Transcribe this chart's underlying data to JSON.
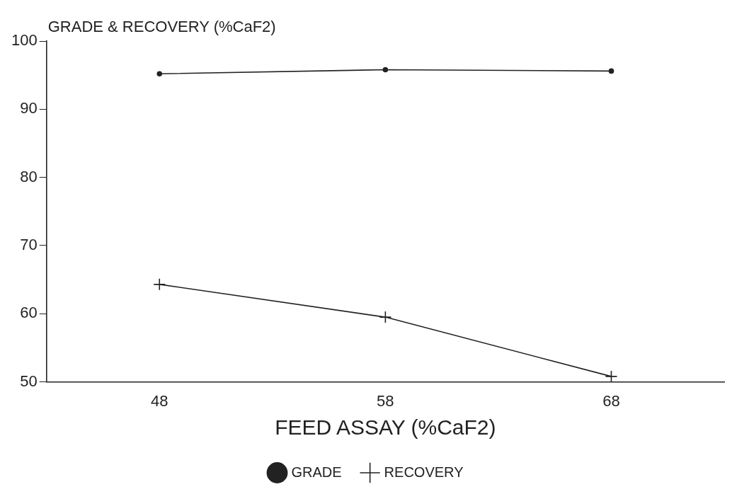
{
  "chart_data": {
    "type": "line",
    "ylabel": "GRADE & RECOVERY (%CaF2)",
    "xlabel": "FEED ASSAY (%CaF2)",
    "x": [
      48,
      58,
      68
    ],
    "series": [
      {
        "name": "GRADE",
        "color": "#222222",
        "marker": "circle",
        "values": [
          95.2,
          95.8,
          95.6
        ]
      },
      {
        "name": "RECOVERY",
        "color": "#222222",
        "marker": "cross",
        "values": [
          64.3,
          59.5,
          50.8
        ]
      }
    ],
    "xlim": [
      43,
      73
    ],
    "xticks": [
      48,
      58,
      68
    ],
    "ylim": [
      50,
      100
    ],
    "yticks": [
      50,
      60,
      70,
      80,
      90,
      100
    ],
    "grid": false,
    "legend": "bottom",
    "line_style": "solid"
  }
}
